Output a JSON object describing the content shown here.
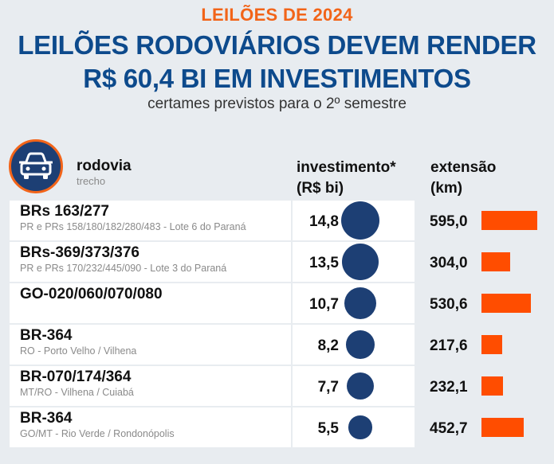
{
  "header": {
    "kicker": "LEILÕES DE 2024",
    "title_line1": "LEILÕES RODOVIÁRIOS DEVEM RENDER",
    "title_line2": "R$ 60,4 BI EM INVESTIMENTOS",
    "subtitle": "certames previstos para o 2º semestre"
  },
  "columns": {
    "rodovia": "rodovia",
    "trecho": "trecho",
    "investimento_line1": "investimento*",
    "investimento_line2": "(R$ bi)",
    "extensao_line1": "extensão",
    "extensao_line2": "(km)"
  },
  "icons": {
    "header": "car-icon"
  },
  "colors": {
    "bubble": "#1d3f74",
    "bar": "#ff4d00",
    "accent": "#f26419",
    "title": "#0d4a8c"
  },
  "chart_data": {
    "type": "table",
    "title": "LEILÕES RODOVIÁRIOS DEVEM RENDER R$ 60,4 BI EM INVESTIMENTOS",
    "subtitle": "certames previstos para o 2º semestre",
    "rows": [
      {
        "road": "BRs 163/277",
        "segment": "PR e PRs 158/180/182/280/483 - Lote 6 do Paraná",
        "investment": 14.8,
        "investment_label": "14,8",
        "extension": 595.0,
        "extension_label": "595,0"
      },
      {
        "road": "BRs-369/373/376",
        "segment": "PR e PRs 170/232/445/090 - Lote 3 do Paraná",
        "investment": 13.5,
        "investment_label": "13,5",
        "extension": 304.0,
        "extension_label": "304,0"
      },
      {
        "road": "GO-020/060/070/080",
        "segment": "",
        "investment": 10.7,
        "investment_label": "10,7",
        "extension": 530.6,
        "extension_label": "530,6"
      },
      {
        "road": "BR-364",
        "segment": "RO - Porto Velho / Vilhena",
        "investment": 8.2,
        "investment_label": "8,2",
        "extension": 217.6,
        "extension_label": "217,6"
      },
      {
        "road": "BR-070/174/364",
        "segment": "MT/RO - Vilhena / Cuiabá",
        "investment": 7.7,
        "investment_label": "7,7",
        "extension": 232.1,
        "extension_label": "232,1"
      },
      {
        "road": "BR-364",
        "segment": "GO/MT - Rio Verde / Rondonópolis",
        "investment": 5.5,
        "investment_label": "5,5",
        "extension": 452.7,
        "extension_label": "452,7"
      }
    ]
  }
}
